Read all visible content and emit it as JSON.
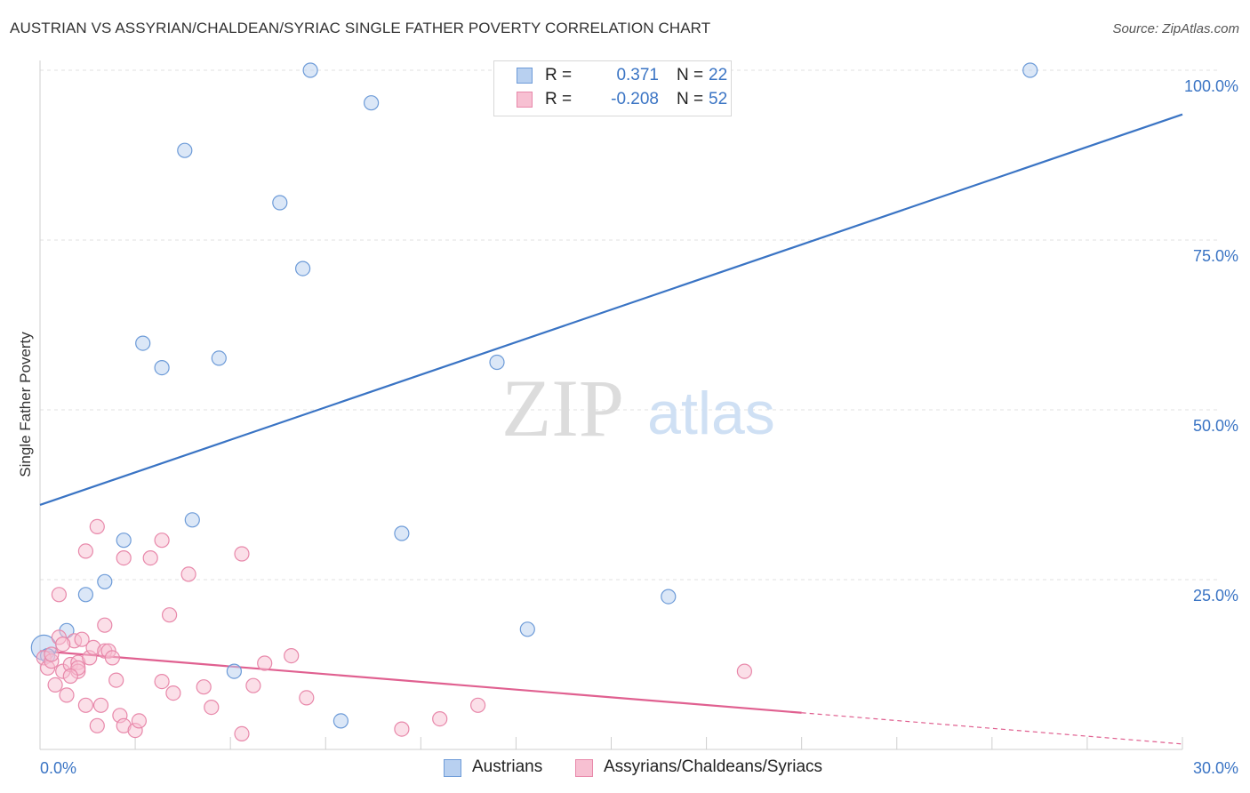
{
  "header": {
    "title": "AUSTRIAN VS ASSYRIAN/CHALDEAN/SYRIAC SINGLE FATHER POVERTY CORRELATION CHART",
    "source": "Source: ZipAtlas.com"
  },
  "watermark": {
    "zip": "ZIP",
    "atlas": "atlas"
  },
  "legend": {
    "rows": [
      {
        "r_label": "R =",
        "r_value": "0.371",
        "n_label": "N =",
        "n_value": "22"
      },
      {
        "r_label": "R =",
        "r_value": "-0.208",
        "n_label": "N =",
        "n_value": "52"
      }
    ]
  },
  "bottom_legend": {
    "a": "Austrians",
    "b": "Assyrians/Chaldeans/Syriacs"
  },
  "colors": {
    "blue_fill": "#b8d0f0",
    "blue_stroke": "#6d9bd8",
    "blue_line": "#3a74c4",
    "pink_fill": "#f7c0d2",
    "pink_stroke": "#e888aa",
    "pink_line": "#e06090",
    "axis_text": "#3a74c4",
    "grid": "#e2e2e2"
  },
  "chart_data": {
    "type": "scatter",
    "title": "AUSTRIAN VS ASSYRIAN/CHALDEAN/SYRIAC SINGLE FATHER POVERTY CORRELATION CHART",
    "xlabel": "",
    "ylabel": "Single Father Poverty",
    "xlim": [
      0,
      30
    ],
    "ylim": [
      0,
      100
    ],
    "x_tick_labels": [
      "0.0%",
      "30.0%"
    ],
    "y_ticks": [
      25,
      50,
      75,
      100
    ],
    "y_tick_labels": [
      "25.0%",
      "50.0%",
      "75.0%",
      "100.0%"
    ],
    "grid": true,
    "legend_position": "top-center",
    "series": [
      {
        "name": "Austrians",
        "color": "#6d9bd8",
        "points": [
          {
            "x": 0.1,
            "y": 15.0
          },
          {
            "x": 0.7,
            "y": 17.5
          },
          {
            "x": 1.2,
            "y": 22.8
          },
          {
            "x": 1.7,
            "y": 24.7
          },
          {
            "x": 2.2,
            "y": 30.8
          },
          {
            "x": 2.7,
            "y": 59.8
          },
          {
            "x": 3.2,
            "y": 56.2
          },
          {
            "x": 3.8,
            "y": 88.2
          },
          {
            "x": 4.0,
            "y": 33.8
          },
          {
            "x": 4.7,
            "y": 57.6
          },
          {
            "x": 5.1,
            "y": 11.5
          },
          {
            "x": 6.3,
            "y": 80.5
          },
          {
            "x": 6.9,
            "y": 70.8
          },
          {
            "x": 7.1,
            "y": 100.0
          },
          {
            "x": 7.9,
            "y": 4.2
          },
          {
            "x": 8.7,
            "y": 95.2
          },
          {
            "x": 9.5,
            "y": 31.8
          },
          {
            "x": 12.0,
            "y": 57.0
          },
          {
            "x": 12.8,
            "y": 17.7
          },
          {
            "x": 16.5,
            "y": 22.5
          },
          {
            "x": 26.0,
            "y": 100.0
          },
          {
            "x": 0.2,
            "y": 13.8
          }
        ],
        "trend": {
          "x": [
            0,
            30
          ],
          "y": [
            36.0,
            93.5
          ]
        }
      },
      {
        "name": "Assyrians/Chaldeans/Syriacs",
        "color": "#e888aa",
        "points": [
          {
            "x": 0.1,
            "y": 13.5
          },
          {
            "x": 0.2,
            "y": 12.0
          },
          {
            "x": 0.3,
            "y": 13.0
          },
          {
            "x": 0.4,
            "y": 9.5
          },
          {
            "x": 0.5,
            "y": 16.5
          },
          {
            "x": 0.6,
            "y": 11.5
          },
          {
            "x": 0.5,
            "y": 22.8
          },
          {
            "x": 0.7,
            "y": 8.0
          },
          {
            "x": 0.8,
            "y": 12.5
          },
          {
            "x": 0.9,
            "y": 16.0
          },
          {
            "x": 1.0,
            "y": 12.8
          },
          {
            "x": 1.0,
            "y": 11.5
          },
          {
            "x": 1.1,
            "y": 16.2
          },
          {
            "x": 1.2,
            "y": 29.2
          },
          {
            "x": 1.3,
            "y": 13.5
          },
          {
            "x": 1.2,
            "y": 6.5
          },
          {
            "x": 1.4,
            "y": 15.0
          },
          {
            "x": 1.5,
            "y": 32.8
          },
          {
            "x": 1.5,
            "y": 3.5
          },
          {
            "x": 1.6,
            "y": 6.5
          },
          {
            "x": 1.7,
            "y": 18.3
          },
          {
            "x": 1.7,
            "y": 14.5
          },
          {
            "x": 1.8,
            "y": 14.5
          },
          {
            "x": 1.9,
            "y": 13.5
          },
          {
            "x": 2.0,
            "y": 10.2
          },
          {
            "x": 2.1,
            "y": 5.0
          },
          {
            "x": 2.2,
            "y": 28.2
          },
          {
            "x": 2.2,
            "y": 3.5
          },
          {
            "x": 2.5,
            "y": 2.8
          },
          {
            "x": 2.6,
            "y": 4.2
          },
          {
            "x": 2.9,
            "y": 28.2
          },
          {
            "x": 3.2,
            "y": 30.8
          },
          {
            "x": 3.2,
            "y": 10.0
          },
          {
            "x": 3.4,
            "y": 19.8
          },
          {
            "x": 3.5,
            "y": 8.3
          },
          {
            "x": 3.9,
            "y": 25.8
          },
          {
            "x": 4.3,
            "y": 9.2
          },
          {
            "x": 4.5,
            "y": 6.2
          },
          {
            "x": 5.3,
            "y": 28.8
          },
          {
            "x": 5.3,
            "y": 2.3
          },
          {
            "x": 5.6,
            "y": 9.4
          },
          {
            "x": 5.9,
            "y": 12.7
          },
          {
            "x": 6.6,
            "y": 13.8
          },
          {
            "x": 7.0,
            "y": 7.6
          },
          {
            "x": 9.5,
            "y": 3.0
          },
          {
            "x": 10.5,
            "y": 4.5
          },
          {
            "x": 11.5,
            "y": 6.5
          },
          {
            "x": 18.5,
            "y": 11.5
          },
          {
            "x": 0.3,
            "y": 14.0
          },
          {
            "x": 1.0,
            "y": 12.0
          },
          {
            "x": 0.6,
            "y": 15.5
          },
          {
            "x": 0.8,
            "y": 10.8
          }
        ],
        "trend": {
          "x": [
            0,
            20
          ],
          "y": [
            14.5,
            5.4
          ]
        },
        "trend_extension": {
          "x": [
            20,
            30
          ],
          "y": [
            5.4,
            0.8
          ]
        }
      }
    ]
  }
}
